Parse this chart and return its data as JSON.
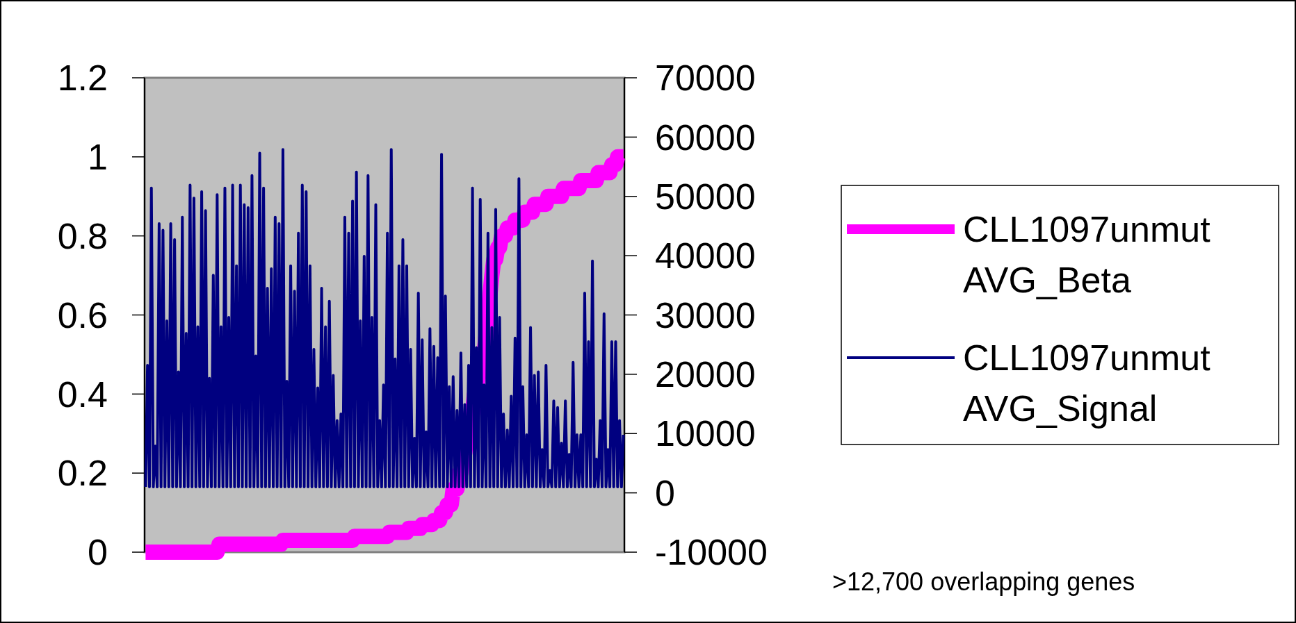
{
  "chart_data": {
    "type": "line",
    "categories": [
      null,
      null,
      null,
      null,
      null,
      null,
      null,
      null,
      null,
      null,
      null,
      null,
      null,
      null,
      null,
      null,
      null,
      null,
      null,
      null,
      null,
      null,
      null,
      null,
      null,
      null,
      null,
      null,
      null,
      null,
      null,
      null,
      null,
      null,
      null,
      null,
      null,
      null,
      null,
      null,
      null,
      null,
      null,
      null,
      null,
      null,
      null,
      null,
      null,
      null,
      null,
      null,
      null,
      null,
      null,
      null,
      null,
      null,
      null,
      null,
      null,
      null,
      null,
      null,
      null,
      null,
      null,
      null,
      null,
      null,
      null,
      null,
      null,
      null,
      null,
      null,
      null,
      null,
      null,
      null,
      null,
      null,
      null,
      null,
      null,
      null,
      null,
      null,
      null,
      null,
      null,
      null,
      null,
      null,
      null,
      null,
      null,
      null,
      null,
      null,
      null,
      null,
      null,
      null,
      null,
      null,
      null,
      null,
      null,
      null,
      null,
      null,
      null,
      null,
      null,
      null,
      null,
      null,
      null,
      null,
      null,
      null,
      null,
      null,
      null,
      null,
      null,
      null,
      null,
      null,
      null,
      null,
      null,
      null,
      null,
      null,
      null,
      null,
      null,
      null,
      null,
      null,
      null,
      null,
      null,
      null,
      null,
      null,
      null,
      null,
      null,
      null,
      null,
      null,
      null,
      null,
      null,
      null,
      null,
      null,
      null,
      null,
      null,
      null,
      null,
      null,
      null,
      null,
      null,
      null,
      null,
      null,
      null,
      null,
      null,
      null,
      null,
      null,
      null,
      null,
      null,
      null,
      null,
      null,
      null,
      null,
      null,
      null,
      null,
      null,
      null,
      null,
      null,
      null,
      null,
      null,
      null,
      null,
      null,
      null,
      null,
      null,
      null,
      null,
      null,
      null,
      null,
      null,
      null,
      null,
      null,
      null,
      null,
      null,
      null,
      null,
      null,
      null,
      null,
      null,
      null,
      null,
      null,
      null,
      null,
      null,
      null,
      null,
      null,
      null,
      null,
      null,
      null,
      null,
      null,
      null,
      null,
      null,
      null,
      null,
      null,
      null,
      null,
      null,
      null,
      null,
      null,
      null
    ],
    "series": [
      {
        "name": "CLL1097unmut AVG_Signal",
        "color": "#000080",
        "axis": "y2",
        "marker": "none",
        "values": [
          1000,
          21500,
          1000,
          51400,
          1000,
          7900,
          1000,
          45400,
          1000,
          44300,
          1000,
          29000,
          1000,
          45400,
          1000,
          42700,
          1000,
          20400,
          1000,
          46500,
          1000,
          26900,
          1000,
          51900,
          1000,
          49700,
          1000,
          28000,
          1000,
          50800,
          1000,
          47600,
          1000,
          19300,
          1000,
          36700,
          1000,
          50300,
          1000,
          28000,
          1000,
          51400,
          1000,
          29600,
          1000,
          51900,
          1000,
          38300,
          1000,
          51900,
          1000,
          48600,
          1000,
          48100,
          1000,
          53500,
          1000,
          23100,
          1000,
          57300,
          1000,
          51400,
          1000,
          34500,
          1000,
          37800,
          1000,
          46500,
          1000,
          45400,
          1000,
          57900,
          1000,
          18800,
          1000,
          38300,
          1000,
          34000,
          1000,
          43800,
          1000,
          51900,
          1000,
          50800,
          1000,
          38300,
          1000,
          24200,
          1000,
          17700,
          1000,
          34500,
          1000,
          28000,
          1000,
          32300,
          1000,
          19800,
          1000,
          12200,
          1000,
          13300,
          1000,
          46500,
          1000,
          43800,
          1000,
          49200,
          1000,
          54100,
          1000,
          29000,
          1000,
          39900,
          1000,
          53500,
          1000,
          29600,
          1000,
          48600,
          1000,
          12200,
          1000,
          18200,
          1000,
          43800,
          1000,
          57900,
          1000,
          22600,
          1000,
          38300,
          1000,
          42700,
          1000,
          38300,
          1000,
          24200,
          1000,
          9200,
          1000,
          33700,
          1000,
          25800,
          1000,
          10300,
          1000,
          27700,
          1000,
          24700,
          1000,
          22800,
          1000,
          57100,
          1000,
          33200,
          1000,
          17900,
          1000,
          19600,
          1000,
          13900,
          1000,
          23600,
          1000,
          14900,
          1000,
          21500,
          1000,
          51400,
          1000,
          24500,
          1000,
          49500,
          1000,
          18200,
          1000,
          43800,
          1000,
          27900,
          1000,
          47800,
          1000,
          29600,
          1000,
          13300,
          1000,
          10600,
          1000,
          16300,
          1000,
          26100,
          1000,
          53000,
          1000,
          17900,
          1000,
          9800,
          1000,
          27900,
          1000,
          19800,
          1000,
          20400,
          1000,
          7300,
          1000,
          21500,
          1000,
          3800,
          1000,
          15500,
          1000,
          14400,
          1000,
          8400,
          1000,
          15500,
          1000,
          6500,
          1000,
          22000,
          1000,
          9800,
          1000,
          9800,
          1000,
          33700,
          1000,
          25500,
          1000,
          39100,
          1000,
          5700,
          1000,
          12200,
          1000,
          30200,
          1000,
          7300,
          1000,
          25500,
          1000,
          25500,
          1000,
          12200,
          1000,
          9800
        ]
      },
      {
        "name": "CLL1097unmut AVG_Beta",
        "color": "#ff00ff",
        "marker": "none",
        "values": [
          0,
          0,
          0,
          0,
          0,
          0,
          0,
          0,
          0,
          0,
          0,
          0,
          0,
          0,
          0,
          0,
          0,
          0,
          0,
          0,
          0,
          0,
          0,
          0,
          0,
          0,
          0,
          0,
          0,
          0,
          0,
          0,
          0,
          0,
          0,
          0,
          0,
          0,
          0.02,
          0.02,
          0.02,
          0.02,
          0.02,
          0.02,
          0.02,
          0.02,
          0.02,
          0.02,
          0.02,
          0.02,
          0.02,
          0.02,
          0.02,
          0.02,
          0.02,
          0.02,
          0.02,
          0.02,
          0.02,
          0.02,
          0.02,
          0.02,
          0.02,
          0.02,
          0.02,
          0.02,
          0.02,
          0.02,
          0.02,
          0.02,
          0.02,
          0.03,
          0.03,
          0.03,
          0.03,
          0.03,
          0.03,
          0.03,
          0.03,
          0.03,
          0.03,
          0.03,
          0.03,
          0.03,
          0.03,
          0.03,
          0.03,
          0.03,
          0.03,
          0.03,
          0.03,
          0.03,
          0.03,
          0.03,
          0.03,
          0.03,
          0.03,
          0.03,
          0.03,
          0.03,
          0.03,
          0.03,
          0.03,
          0.03,
          0.03,
          0.03,
          0.03,
          0.03,
          0.04,
          0.04,
          0.04,
          0.04,
          0.04,
          0.04,
          0.04,
          0.04,
          0.04,
          0.04,
          0.04,
          0.04,
          0.04,
          0.04,
          0.04,
          0.04,
          0.04,
          0.04,
          0.05,
          0.05,
          0.05,
          0.05,
          0.05,
          0.05,
          0.05,
          0.05,
          0.05,
          0.05,
          0.06,
          0.06,
          0.06,
          0.06,
          0.06,
          0.06,
          0.06,
          0.07,
          0.07,
          0.07,
          0.07,
          0.07,
          0.07,
          0.08,
          0.08,
          0.08,
          0.08,
          0.1,
          0.1,
          0.1,
          0.12,
          0.12,
          0.12,
          0.16,
          0.16,
          0.16,
          0.2,
          0.2,
          0.25,
          0.25,
          0.3,
          0.3,
          0.35,
          0.35,
          0.4,
          0.4,
          0.45,
          0.45,
          0.5,
          0.5,
          0.55,
          0.6,
          0.65,
          0.7,
          0.74,
          0.74,
          0.77,
          0.77,
          0.8,
          0.8,
          0.8,
          0.82,
          0.82,
          0.82,
          0.82,
          0.84,
          0.84,
          0.84,
          0.84,
          0.84,
          0.86,
          0.86,
          0.86,
          0.86,
          0.86,
          0.88,
          0.88,
          0.88,
          0.88,
          0.88,
          0.88,
          0.88,
          0.9,
          0.9,
          0.9,
          0.9,
          0.9,
          0.9,
          0.9,
          0.9,
          0.92,
          0.92,
          0.92,
          0.92,
          0.92,
          0.92,
          0.92,
          0.92,
          0.92,
          0.94,
          0.94,
          0.94,
          0.94,
          0.94,
          0.94,
          0.94,
          0.94,
          0.94,
          0.96,
          0.96,
          0.96,
          0.96,
          0.96,
          0.96,
          0.96,
          0.98,
          0.98,
          0.98,
          1,
          1,
          1,
          1
        ]
      }
    ],
    "ylim": [
      0,
      1.2
    ],
    "yticks": [
      0,
      0.2,
      0.4,
      0.6,
      0.8,
      1,
      1.2
    ],
    "y2lim": [
      -10000,
      70000
    ],
    "y2ticks": [
      -10000,
      0,
      10000,
      20000,
      30000,
      40000,
      50000,
      60000,
      70000
    ],
    "legend": "right",
    "annotations": [
      ">12,700 overlapping genes"
    ]
  }
}
